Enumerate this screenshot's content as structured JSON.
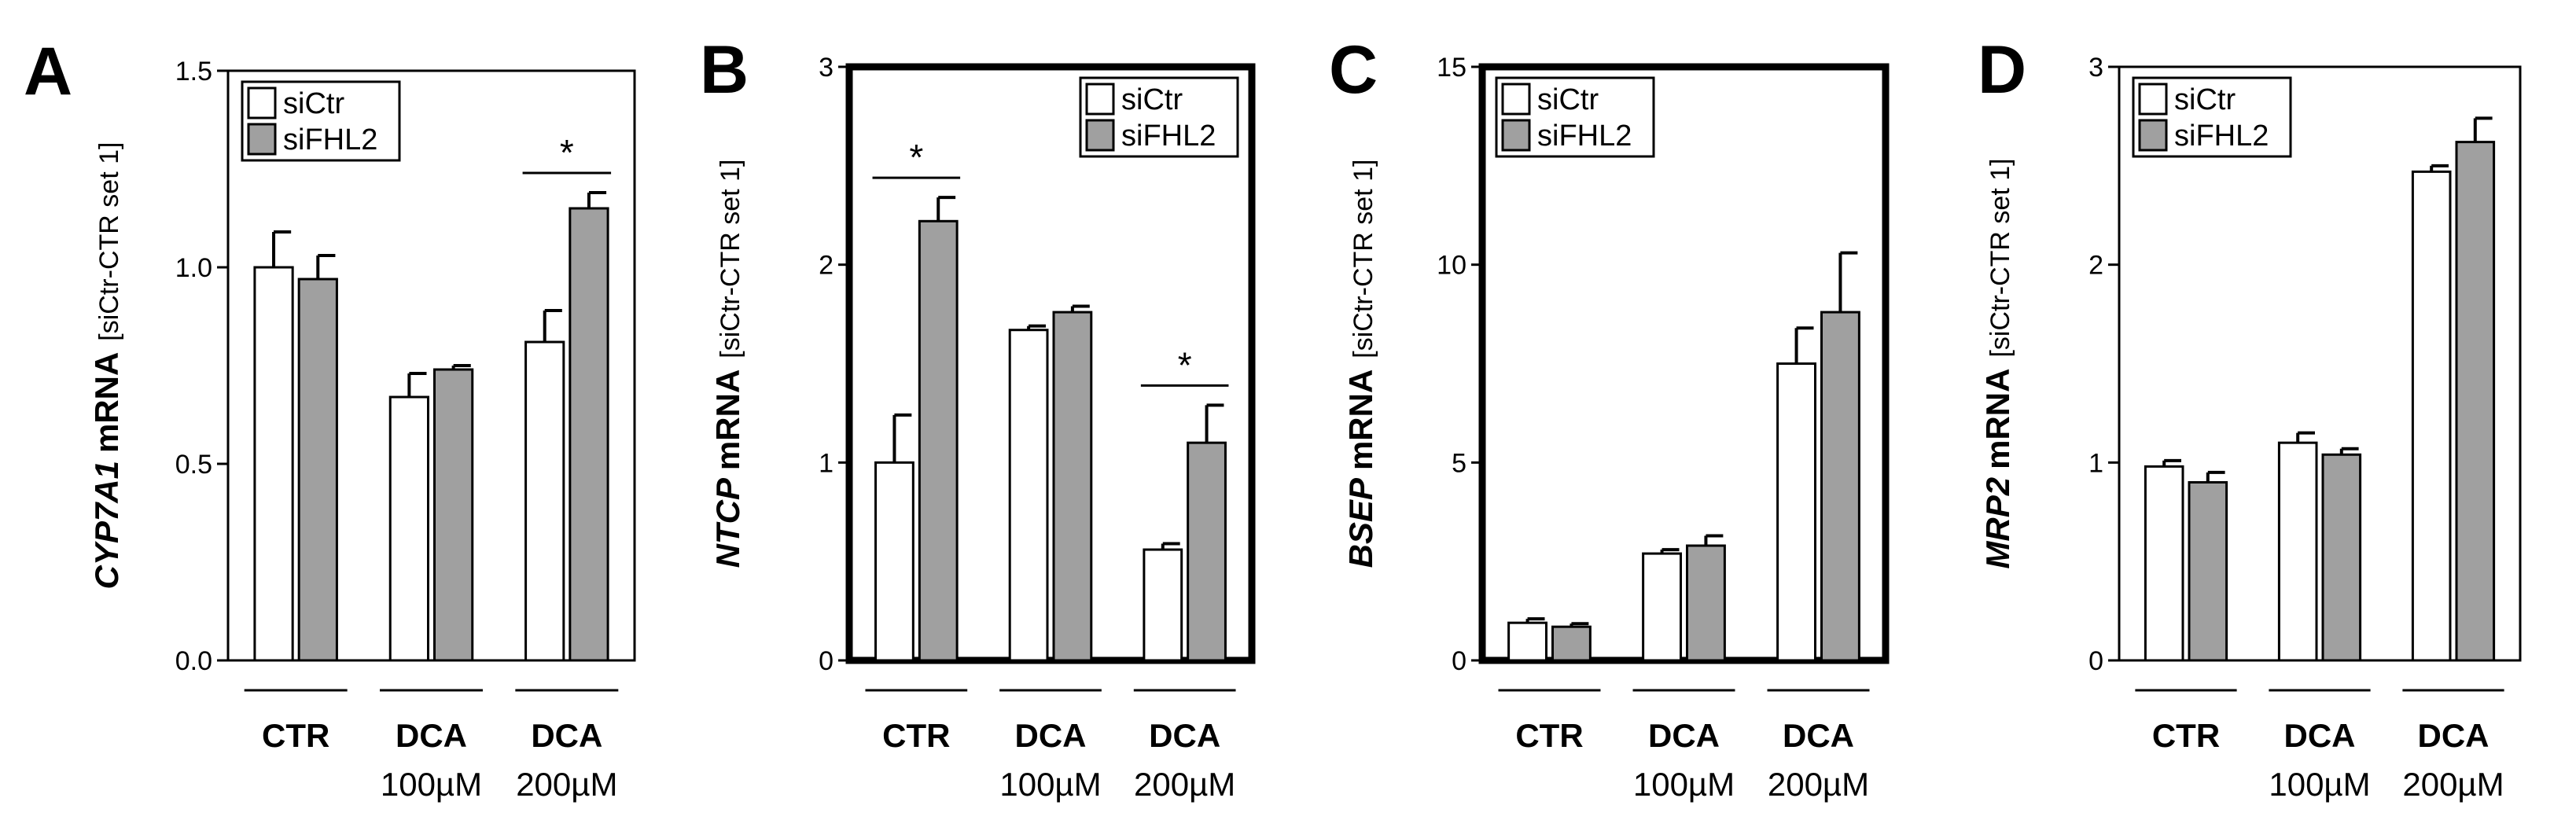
{
  "colors": {
    "series1": "#ffffff",
    "series2": "#a0a0a0",
    "axis": "#000000"
  },
  "chart_data": [
    {
      "type": "bar",
      "panel": "A",
      "ylabel_gene": "CYP7A1",
      "ylabel_unit": "mRNA",
      "ylabel_norm": "[siCtr-CTR set 1]",
      "ylim": [
        0,
        1.5
      ],
      "yticks": [
        "0.0",
        "0.5",
        "1.0",
        "1.5"
      ],
      "categories": [
        "CTR",
        "DCA",
        "DCA"
      ],
      "category_sub": [
        "",
        "100µM",
        "200µM"
      ],
      "legend": [
        "siCtr",
        "siFHL2"
      ],
      "series": [
        {
          "name": "siCtr",
          "values": [
            1.0,
            0.67,
            0.81
          ],
          "errors": [
            0.09,
            0.06,
            0.08
          ]
        },
        {
          "name": "siFHL2",
          "values": [
            0.97,
            0.74,
            1.15
          ],
          "errors": [
            0.06,
            0.01,
            0.04
          ]
        }
      ],
      "significance": [
        {
          "category": 2,
          "label": "*"
        }
      ]
    },
    {
      "type": "bar",
      "panel": "B",
      "ylabel_gene": "NTCP",
      "ylabel_unit": "mRNA",
      "ylabel_norm": "[siCtr-CTR set 1]",
      "ylim": [
        0,
        3
      ],
      "yticks": [
        "0",
        "1",
        "2",
        "3"
      ],
      "categories": [
        "CTR",
        "DCA",
        "DCA"
      ],
      "category_sub": [
        "",
        "100µM",
        "200µM"
      ],
      "legend": [
        "siCtr",
        "siFHL2"
      ],
      "series": [
        {
          "name": "siCtr",
          "values": [
            1.0,
            1.67,
            0.56
          ],
          "errors": [
            0.24,
            0.02,
            0.03
          ]
        },
        {
          "name": "siFHL2",
          "values": [
            2.22,
            1.76,
            1.1
          ],
          "errors": [
            0.12,
            0.03,
            0.19
          ]
        }
      ],
      "significance": [
        {
          "category": 0,
          "label": "*"
        },
        {
          "category": 2,
          "label": "*"
        }
      ]
    },
    {
      "type": "bar",
      "panel": "C",
      "ylabel_gene": "BSEP",
      "ylabel_unit": "mRNA",
      "ylabel_norm": "[siCtr-CTR set 1]",
      "ylim": [
        0,
        15
      ],
      "yticks": [
        "0",
        "5",
        "10",
        "15"
      ],
      "categories": [
        "CTR",
        "DCA",
        "DCA"
      ],
      "category_sub": [
        "",
        "100µM",
        "200µM"
      ],
      "legend": [
        "siCtr",
        "siFHL2"
      ],
      "series": [
        {
          "name": "siCtr",
          "values": [
            0.95,
            2.7,
            7.5
          ],
          "errors": [
            0.1,
            0.1,
            0.9
          ]
        },
        {
          "name": "siFHL2",
          "values": [
            0.85,
            2.9,
            8.8
          ],
          "errors": [
            0.08,
            0.25,
            1.5
          ]
        }
      ],
      "significance": []
    },
    {
      "type": "bar",
      "panel": "D",
      "ylabel_gene": "MRP2",
      "ylabel_unit": "mRNA",
      "ylabel_norm": "[siCtr-CTR set 1]",
      "ylim": [
        0,
        3
      ],
      "yticks": [
        "0",
        "1",
        "2",
        "3"
      ],
      "categories": [
        "CTR",
        "DCA",
        "DCA"
      ],
      "category_sub": [
        "",
        "100µM",
        "200µM"
      ],
      "legend": [
        "siCtr",
        "siFHL2"
      ],
      "series": [
        {
          "name": "siCtr",
          "values": [
            0.98,
            1.1,
            2.47
          ],
          "errors": [
            0.03,
            0.05,
            0.03
          ]
        },
        {
          "name": "siFHL2",
          "values": [
            0.9,
            1.04,
            2.62
          ],
          "errors": [
            0.05,
            0.03,
            0.12
          ]
        }
      ],
      "significance": []
    }
  ]
}
